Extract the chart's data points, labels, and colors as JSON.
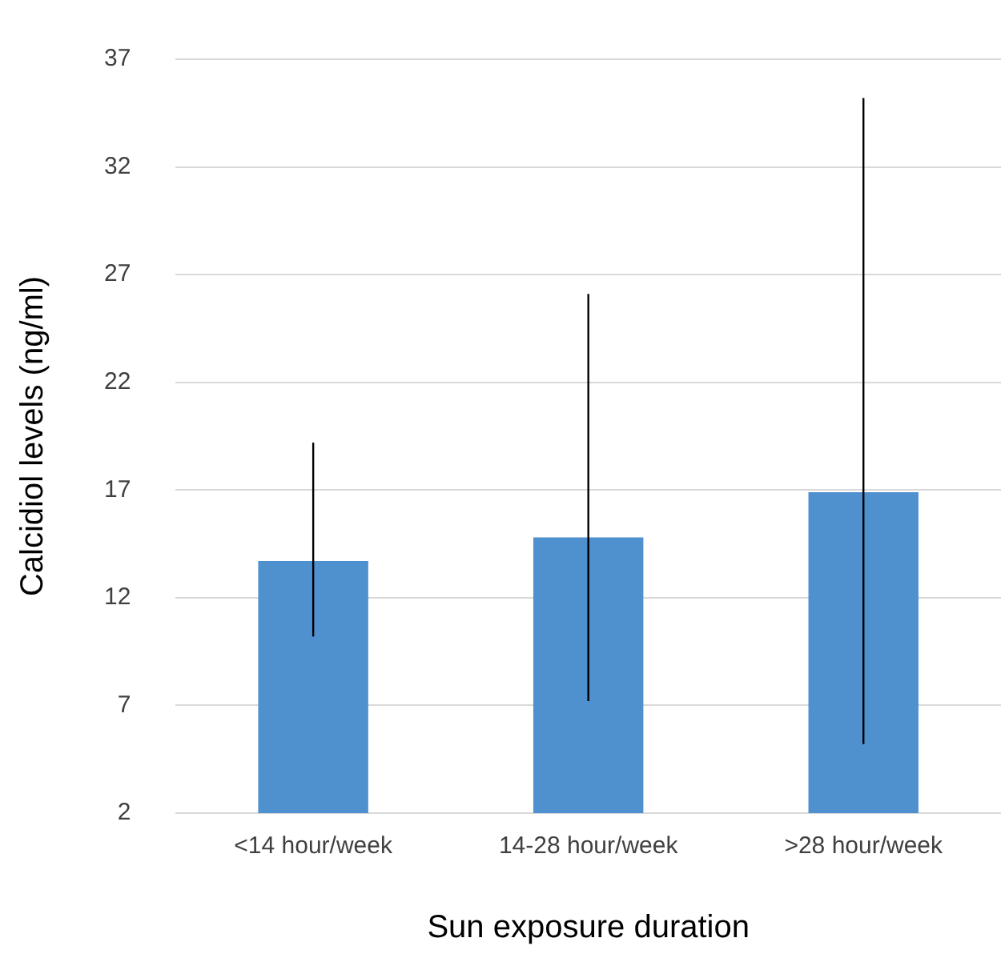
{
  "chart_data": {
    "type": "bar",
    "xlabel": "Sun exposure duration",
    "ylabel": "Calcidiol levels (ng/ml)",
    "categories": [
      "<14 hour/week",
      "14-28 hour/week",
      ">28 hour/week"
    ],
    "values": [
      13.7,
      14.8,
      16.9
    ],
    "color": "#4f90cf",
    "errors": [
      [
        10.2,
        19.2
      ],
      [
        7.2,
        26.1
      ],
      [
        5.2,
        35.2
      ]
    ],
    "ylim": [
      2,
      37
    ],
    "yticks": [
      2,
      7,
      12,
      17,
      22,
      27,
      32,
      37
    ],
    "grid": "y",
    "legend": false
  }
}
